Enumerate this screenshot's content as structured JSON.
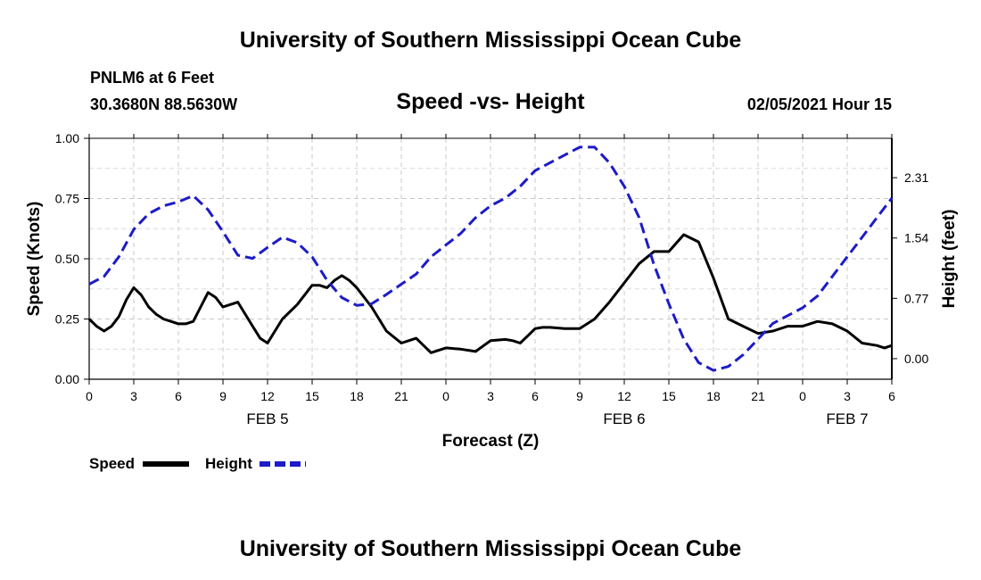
{
  "header": {
    "title_top": "University of Southern Mississippi Ocean Cube",
    "title_bottom": "University of Southern Mississippi Ocean Cube"
  },
  "station": {
    "name": "PNLM6 at 6 Feet",
    "coords": "30.3680N 88.5630W",
    "timestamp": "02/05/2021 Hour 15"
  },
  "colors": {
    "speed": "#000000",
    "height": "#1c1cc8",
    "grid": "#c8c8c8"
  },
  "chart_data": {
    "type": "line",
    "title": "Speed -vs- Height",
    "xlabel": "Forecast (Z)",
    "ylabel": "Speed (Knots)",
    "y2label": "Height (feet)",
    "x_unit": "hours since FEB 5 00Z",
    "xlim": [
      0,
      54
    ],
    "ylim": [
      0,
      1.0
    ],
    "y2lim": [
      -0.2625,
      2.8125
    ],
    "x_ticks": [
      0,
      3,
      6,
      9,
      12,
      15,
      18,
      21,
      24,
      27,
      30,
      33,
      36,
      39,
      42,
      45,
      48,
      51,
      54
    ],
    "x_tick_labels": [
      "0",
      "3",
      "6",
      "9",
      "12",
      "15",
      "18",
      "21",
      "0",
      "3",
      "6",
      "9",
      "12",
      "15",
      "18",
      "21",
      "0",
      "3",
      "6"
    ],
    "y_ticks": [
      0,
      0.25,
      0.5,
      0.75,
      1.0
    ],
    "y_tick_labels": [
      "0.00",
      "0.25",
      "0.50",
      "0.75",
      "1.00"
    ],
    "y2_ticks": [
      0.0,
      0.77,
      1.54,
      2.31
    ],
    "y2_tick_labels": [
      "0.00",
      "0.77",
      "1.54",
      "2.31"
    ],
    "date_labels": [
      {
        "x": 12,
        "label": "FEB 5"
      },
      {
        "x": 36,
        "label": "FEB 6"
      },
      {
        "x": 51,
        "label": "FEB 7"
      }
    ],
    "grid": true,
    "legend": [
      {
        "name": "Speed",
        "key": "speed"
      },
      {
        "name": "Height",
        "key": "height"
      }
    ],
    "series": [
      {
        "name": "Speed",
        "axis": "left",
        "style": "solid",
        "x": [
          0,
          0.5,
          1,
          1.5,
          2,
          2.5,
          3,
          3.5,
          4,
          4.5,
          5,
          5.5,
          6,
          6.5,
          7,
          7.5,
          8,
          8.5,
          9,
          9.5,
          10,
          10.5,
          11,
          11.5,
          12,
          12.5,
          13,
          14,
          15,
          15.5,
          16,
          16.5,
          17,
          17.5,
          18,
          19,
          20,
          21,
          22,
          23,
          24,
          25,
          26,
          27,
          28,
          28.5,
          29,
          29.5,
          30,
          30.5,
          31,
          32,
          33,
          34,
          35,
          36,
          37,
          38,
          39,
          40,
          41,
          42,
          43,
          44,
          45,
          46,
          47,
          48,
          49,
          50,
          51,
          52,
          53,
          53.5,
          54
        ],
        "values": [
          0.25,
          0.22,
          0.2,
          0.22,
          0.26,
          0.33,
          0.38,
          0.35,
          0.3,
          0.27,
          0.25,
          0.24,
          0.23,
          0.23,
          0.24,
          0.3,
          0.36,
          0.34,
          0.3,
          0.31,
          0.32,
          0.27,
          0.22,
          0.17,
          0.15,
          0.2,
          0.25,
          0.31,
          0.39,
          0.39,
          0.38,
          0.41,
          0.43,
          0.41,
          0.38,
          0.3,
          0.2,
          0.15,
          0.17,
          0.11,
          0.13,
          0.125,
          0.115,
          0.16,
          0.165,
          0.16,
          0.15,
          0.18,
          0.21,
          0.215,
          0.215,
          0.21,
          0.21,
          0.25,
          0.32,
          0.4,
          0.48,
          0.53,
          0.53,
          0.6,
          0.57,
          0.42,
          0.25,
          0.22,
          0.19,
          0.2,
          0.22,
          0.22,
          0.24,
          0.23,
          0.2,
          0.15,
          0.14,
          0.13,
          0.14
        ]
      },
      {
        "name": "Height",
        "axis": "right",
        "style": "dashed",
        "x": [
          0,
          1,
          2,
          3,
          4,
          5,
          6,
          7,
          8,
          9,
          10,
          11,
          12,
          13,
          14,
          15,
          16,
          17,
          18,
          19,
          20,
          21,
          22,
          23,
          24,
          25,
          26,
          27,
          28,
          29,
          30,
          31,
          32,
          33,
          34,
          35,
          36,
          37,
          38,
          39,
          40,
          41,
          42,
          43,
          44,
          45,
          46,
          47,
          48,
          49,
          50,
          51,
          52,
          53,
          54
        ],
        "values": [
          0.95,
          1.05,
          1.3,
          1.65,
          1.85,
          1.95,
          2.0,
          2.08,
          1.9,
          1.62,
          1.32,
          1.28,
          1.42,
          1.55,
          1.48,
          1.3,
          1.0,
          0.78,
          0.68,
          0.7,
          0.82,
          0.95,
          1.08,
          1.3,
          1.45,
          1.6,
          1.8,
          1.95,
          2.05,
          2.2,
          2.4,
          2.5,
          2.6,
          2.7,
          2.7,
          2.5,
          2.2,
          1.8,
          1.2,
          0.7,
          0.25,
          -0.05,
          -0.15,
          -0.1,
          0.05,
          0.25,
          0.45,
          0.55,
          0.65,
          0.8,
          1.05,
          1.3,
          1.55,
          1.8,
          2.05
        ]
      }
    ]
  }
}
